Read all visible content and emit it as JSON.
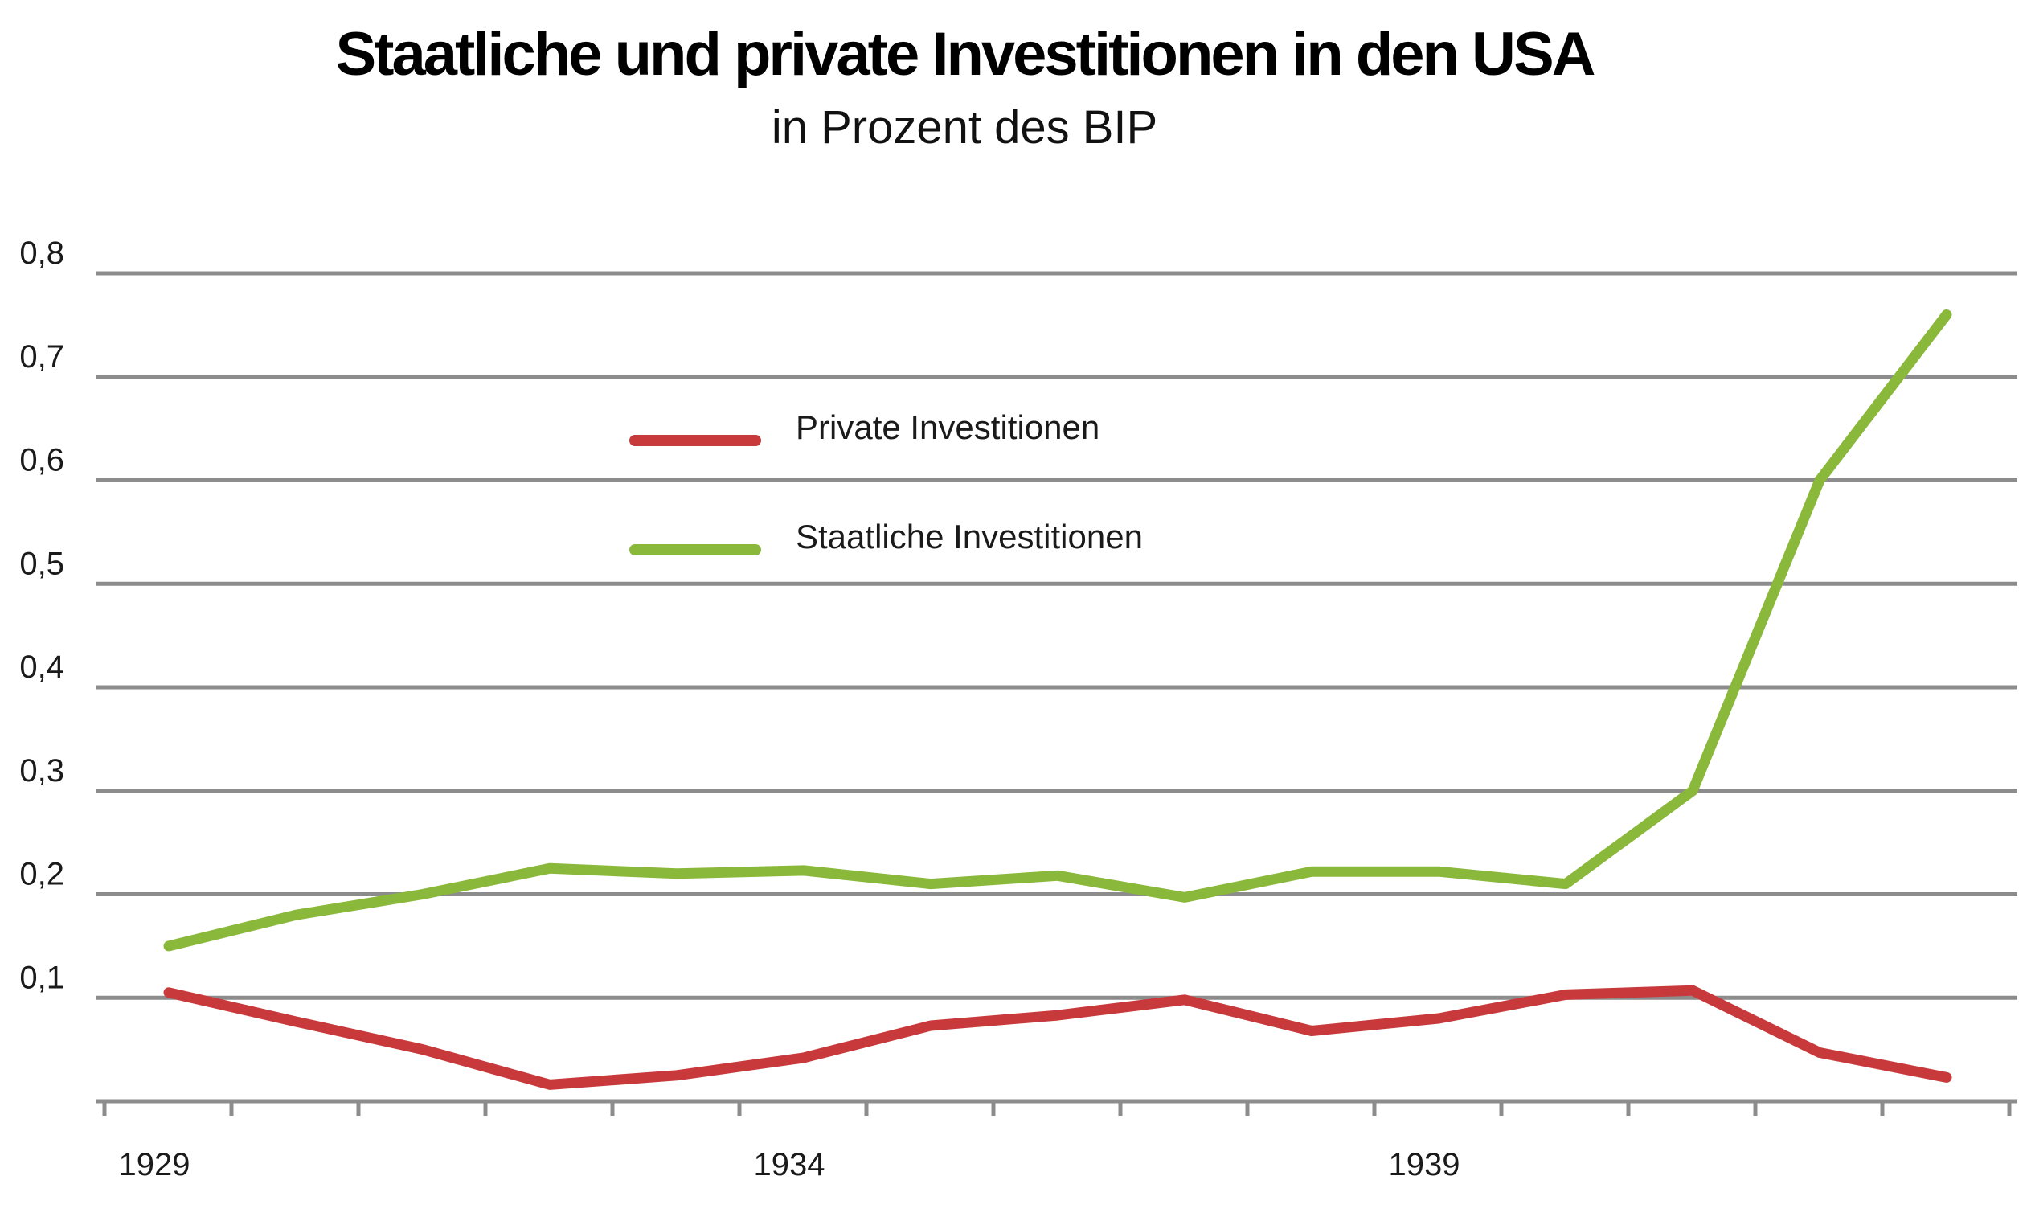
{
  "chart_data": {
    "type": "line",
    "title": "Staatliche und private Investitionen in den USA",
    "subtitle": "in Prozent des BIP",
    "x": [
      1929,
      1930,
      1931,
      1932,
      1933,
      1934,
      1935,
      1936,
      1937,
      1938,
      1939,
      1940,
      1941,
      1942,
      1943
    ],
    "x_tick_labels": [
      "1929",
      "1934",
      "1939"
    ],
    "y_tick_labels": [
      "0,1",
      "0,2",
      "0,3",
      "0,4",
      "0,5",
      "0,6",
      "0,7",
      "0,8"
    ],
    "ylim": [
      0,
      0.8
    ],
    "grid": "horizontal",
    "legend_position": "upper-left-center",
    "series": [
      {
        "name": "Private Investitionen",
        "color": "#c8393b",
        "values": [
          0.105,
          0.077,
          0.05,
          0.016,
          0.025,
          0.042,
          0.073,
          0.083,
          0.098,
          0.068,
          0.08,
          0.103,
          0.107,
          0.047,
          0.023
        ]
      },
      {
        "name": "Staatliche Investitionen",
        "color": "#8ab83a",
        "values": [
          0.15,
          0.18,
          0.2,
          0.225,
          0.22,
          0.223,
          0.21,
          0.218,
          0.197,
          0.222,
          0.222,
          0.21,
          0.3,
          0.6,
          0.76
        ]
      }
    ]
  }
}
